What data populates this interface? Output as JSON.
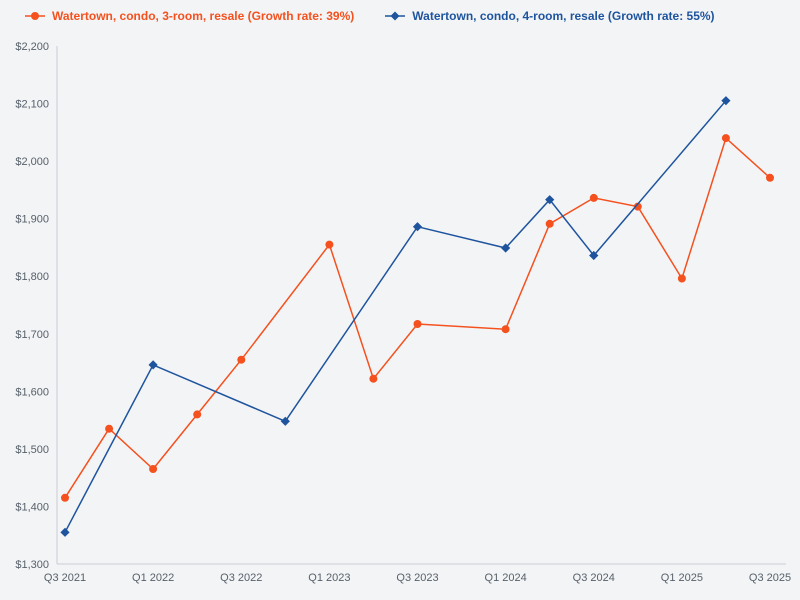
{
  "chart_data": {
    "type": "line",
    "title": "",
    "xlabel": "",
    "ylabel": "",
    "grid": false,
    "legend_position": "top-left",
    "ylim": [
      1300,
      2200
    ],
    "colors": {
      "background": "#f3f4f6",
      "axis": "#c9cdd4",
      "tick_text": "#57606a",
      "series_3room": "#f4511e",
      "series_4room": "#1e549e"
    },
    "x_quarters": [
      "Q3 2021",
      "Q4 2021",
      "Q1 2022",
      "Q2 2022",
      "Q3 2022",
      "Q4 2022",
      "Q1 2023",
      "Q2 2023",
      "Q3 2023",
      "Q4 2023",
      "Q1 2024",
      "Q2 2024",
      "Q3 2024",
      "Q4 2024",
      "Q1 2025",
      "Q2 2025",
      "Q3 2025"
    ],
    "x_ticks": [
      {
        "index": 0,
        "label": "Q3 2021"
      },
      {
        "index": 2,
        "label": "Q1 2022"
      },
      {
        "index": 4,
        "label": "Q3 2022"
      },
      {
        "index": 6,
        "label": "Q1 2023"
      },
      {
        "index": 8,
        "label": "Q3 2023"
      },
      {
        "index": 10,
        "label": "Q1 2024"
      },
      {
        "index": 12,
        "label": "Q3 2024"
      },
      {
        "index": 14,
        "label": "Q1 2025"
      },
      {
        "index": 16,
        "label": "Q3 2025"
      }
    ],
    "y_ticks": [
      {
        "value": 1300,
        "label": "$1,300"
      },
      {
        "value": 1400,
        "label": "$1,400"
      },
      {
        "value": 1500,
        "label": "$1,500"
      },
      {
        "value": 1600,
        "label": "$1,600"
      },
      {
        "value": 1700,
        "label": "$1,700"
      },
      {
        "value": 1800,
        "label": "$1,800"
      },
      {
        "value": 1900,
        "label": "$1,900"
      },
      {
        "value": 2000,
        "label": "$2,000"
      },
      {
        "value": 2100,
        "label": "$2,100"
      },
      {
        "value": 2200,
        "label": "$2,200"
      }
    ],
    "series": [
      {
        "id": "3-room",
        "name": "Watertown, condo, 3-room, resale (Growth rate: 39%)",
        "growth_rate": "39%",
        "color": "#f4511e",
        "marker": "circle",
        "points": [
          {
            "quarter": "Q3 2021",
            "value": 1415
          },
          {
            "quarter": "Q4 2021",
            "value": 1535
          },
          {
            "quarter": "Q1 2022",
            "value": 1465
          },
          {
            "quarter": "Q2 2022",
            "value": 1560
          },
          {
            "quarter": "Q3 2022",
            "value": 1655
          },
          {
            "quarter": "Q1 2023",
            "value": 1855
          },
          {
            "quarter": "Q2 2023",
            "value": 1622
          },
          {
            "quarter": "Q3 2023",
            "value": 1717
          },
          {
            "quarter": "Q1 2024",
            "value": 1708
          },
          {
            "quarter": "Q2 2024",
            "value": 1891
          },
          {
            "quarter": "Q3 2024",
            "value": 1936
          },
          {
            "quarter": "Q4 2024",
            "value": 1921
          },
          {
            "quarter": "Q1 2025",
            "value": 1796
          },
          {
            "quarter": "Q2 2025",
            "value": 2040
          },
          {
            "quarter": "Q3 2025",
            "value": 1971
          }
        ]
      },
      {
        "id": "4-room",
        "name": "Watertown, condo, 4-room, resale (Growth rate: 55%)",
        "growth_rate": "55%",
        "color": "#1e549e",
        "marker": "diamond",
        "points": [
          {
            "quarter": "Q3 2021",
            "value": 1355
          },
          {
            "quarter": "Q1 2022",
            "value": 1646
          },
          {
            "quarter": "Q4 2022",
            "value": 1548
          },
          {
            "quarter": "Q3 2023",
            "value": 1886
          },
          {
            "quarter": "Q1 2024",
            "value": 1849
          },
          {
            "quarter": "Q2 2024",
            "value": 1933
          },
          {
            "quarter": "Q3 2024",
            "value": 1836
          },
          {
            "quarter": "Q2 2025",
            "value": 2105
          }
        ]
      }
    ]
  }
}
